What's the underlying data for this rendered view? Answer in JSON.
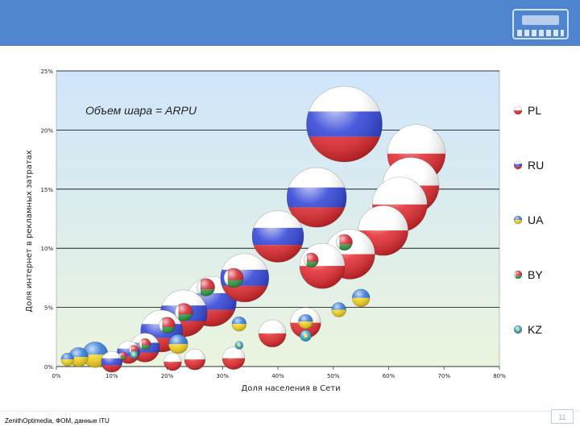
{
  "colors": {
    "header": "#4f84cf",
    "grid": "#000000",
    "plot_top": "#cfe5fb",
    "plot_bottom": "#eaf4de"
  },
  "footer": {
    "source": "ZenithOptimedia, ФОМ, данные ITU",
    "page_number": "11"
  },
  "chart_data": {
    "type": "scatter",
    "subtype": "bubble",
    "title": "",
    "annotation": "Объем шара = ARPU",
    "xlabel": "Доля населения в Сети",
    "ylabel": "Доля интернет в рекламных затратах",
    "xlim": [
      0,
      80
    ],
    "ylim": [
      0,
      25
    ],
    "x_ticks": [
      "0%",
      "10%",
      "20%",
      "30%",
      "40%",
      "50%",
      "60%",
      "70%",
      "80%"
    ],
    "y_ticks": [
      "0%",
      "5%",
      "10%",
      "15%",
      "20%",
      "25%"
    ],
    "grid": true,
    "legend_position": "right",
    "legend": [
      "PL",
      "RU",
      "UA",
      "BY",
      "KZ"
    ],
    "series": [
      {
        "name": "PL",
        "flag": "pl",
        "points": [
          {
            "x": 65,
            "y": 18.0,
            "r": 36
          },
          {
            "x": 64,
            "y": 15.3,
            "r": 35
          },
          {
            "x": 62,
            "y": 13.7,
            "r": 34
          },
          {
            "x": 59,
            "y": 11.5,
            "r": 31
          },
          {
            "x": 53,
            "y": 9.5,
            "r": 31
          },
          {
            "x": 48,
            "y": 8.5,
            "r": 28
          },
          {
            "x": 45,
            "y": 3.7,
            "r": 19
          },
          {
            "x": 39,
            "y": 2.8,
            "r": 17
          },
          {
            "x": 32,
            "y": 0.7,
            "r": 14
          },
          {
            "x": 25,
            "y": 0.6,
            "r": 13
          },
          {
            "x": 21,
            "y": 0.4,
            "r": 11
          }
        ]
      },
      {
        "name": "RU",
        "flag": "ru",
        "points": [
          {
            "x": 52,
            "y": 20.5,
            "r": 47
          },
          {
            "x": 47,
            "y": 14.3,
            "r": 37
          },
          {
            "x": 40,
            "y": 11.0,
            "r": 32
          },
          {
            "x": 34,
            "y": 7.5,
            "r": 30
          },
          {
            "x": 28,
            "y": 5.5,
            "r": 31
          },
          {
            "x": 23,
            "y": 4.5,
            "r": 29
          },
          {
            "x": 19,
            "y": 3.0,
            "r": 26
          },
          {
            "x": 16,
            "y": 1.6,
            "r": 18
          },
          {
            "x": 13,
            "y": 1.2,
            "r": 14
          },
          {
            "x": 10,
            "y": 0.4,
            "r": 13
          }
        ]
      },
      {
        "name": "UA",
        "flag": "ua",
        "points": [
          {
            "x": 55,
            "y": 5.8,
            "r": 11
          },
          {
            "x": 51,
            "y": 4.8,
            "r": 9
          },
          {
            "x": 45,
            "y": 3.8,
            "r": 9
          },
          {
            "x": 33,
            "y": 3.6,
            "r": 9
          },
          {
            "x": 22,
            "y": 1.9,
            "r": 12
          },
          {
            "x": 7,
            "y": 1.0,
            "r": 16
          },
          {
            "x": 4,
            "y": 0.8,
            "r": 12
          },
          {
            "x": 2,
            "y": 0.6,
            "r": 8
          }
        ]
      },
      {
        "name": "BY",
        "flag": "by",
        "points": [
          {
            "x": 52,
            "y": 10.5,
            "r": 10
          },
          {
            "x": 46,
            "y": 9.0,
            "r": 9
          },
          {
            "x": 32,
            "y": 7.5,
            "r": 12
          },
          {
            "x": 27,
            "y": 6.7,
            "r": 11
          },
          {
            "x": 23,
            "y": 4.6,
            "r": 11
          },
          {
            "x": 20,
            "y": 3.5,
            "r": 10
          },
          {
            "x": 16,
            "y": 1.9,
            "r": 7
          },
          {
            "x": 14,
            "y": 1.4,
            "r": 6
          },
          {
            "x": 12,
            "y": 0.9,
            "r": 5
          }
        ]
      },
      {
        "name": "KZ",
        "flag": "kz",
        "points": [
          {
            "x": 45,
            "y": 2.6,
            "r": 7
          },
          {
            "x": 33,
            "y": 1.8,
            "r": 5
          },
          {
            "x": 14,
            "y": 1.0,
            "r": 5
          }
        ]
      }
    ]
  }
}
